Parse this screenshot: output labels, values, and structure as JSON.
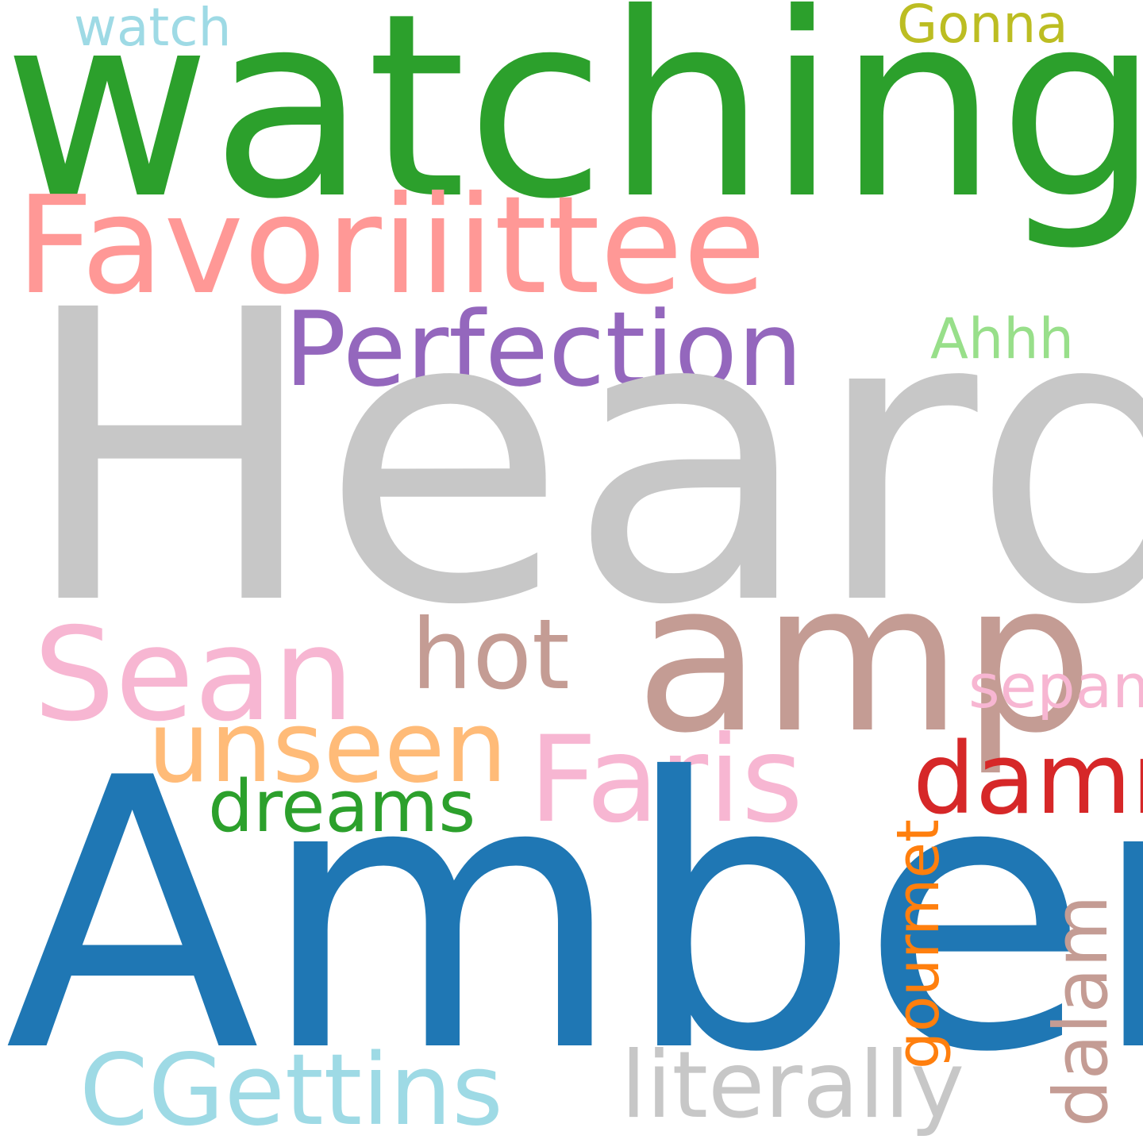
{
  "words": {
    "heard": {
      "text": "Heard",
      "color": "#c7c7c7"
    },
    "amber": {
      "text": "Amber",
      "color": "#1f77b4"
    },
    "watching": {
      "text": "watching",
      "color": "#2ca02c"
    },
    "favoriiittee": {
      "text": "Favoriiittee",
      "color": "#ff9896"
    },
    "amp": {
      "text": "amp",
      "color": "#c49c94"
    },
    "perfection": {
      "text": "Perfection",
      "color": "#9467bd"
    },
    "sean": {
      "text": "Sean",
      "color": "#f7b6d2"
    },
    "faris": {
      "text": "Faris",
      "color": "#f7b6d2"
    },
    "cgettins": {
      "text": "CGettins",
      "color": "#9edae5"
    },
    "unseen": {
      "text": "unseen",
      "color": "#ffbb78"
    },
    "literally": {
      "text": "literally",
      "color": "#c7c7c7"
    },
    "damn": {
      "text": "damn",
      "color": "#d62728"
    },
    "hot": {
      "text": "hot",
      "color": "#c49c94"
    },
    "dreams": {
      "text": "dreams",
      "color": "#2ca02c"
    },
    "dalam": {
      "text": "dalam",
      "color": "#c49c94"
    },
    "gourmet": {
      "text": "gourmet",
      "color": "#ff7f0e"
    },
    "sepam": {
      "text": "sepam",
      "color": "#f7b6d2"
    },
    "ahhh": {
      "text": "Ahhh",
      "color": "#98df8a"
    },
    "watch": {
      "text": "watch",
      "color": "#9edae5"
    },
    "gonna": {
      "text": "Gonna",
      "color": "#bcbd22"
    }
  }
}
